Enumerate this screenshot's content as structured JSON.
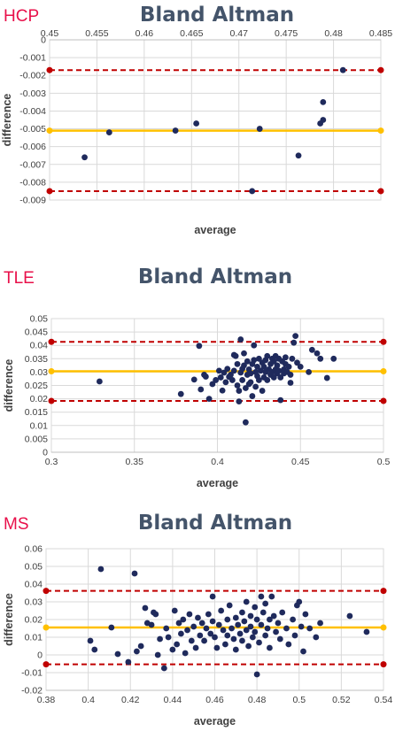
{
  "chart_data": [
    {
      "type": "scatter",
      "group_label": "HCP",
      "title": "Bland Altman",
      "xlabel": "average",
      "ylabel": "difference",
      "xlim": [
        0.45,
        0.485
      ],
      "ylim": [
        -0.009,
        0
      ],
      "x_ticks": [
        "0.45",
        "0.455",
        "0.46",
        "0.465",
        "0.47",
        "0.475",
        "0.48",
        "0.485"
      ],
      "y_ticks": [
        "0",
        "-0.001",
        "-0.002",
        "-0.003",
        "-0.004",
        "-0.005",
        "-0.006",
        "-0.007",
        "-0.008",
        "-0.009"
      ],
      "x_axis_position": "top",
      "mean": -0.0051,
      "upper_loa": -0.0017,
      "lower_loa": -0.0085,
      "points": [
        [
          0.4537,
          -0.0066
        ],
        [
          0.4563,
          -0.0052
        ],
        [
          0.4633,
          -0.0051
        ],
        [
          0.4655,
          -0.0047
        ],
        [
          0.4714,
          -0.0085
        ],
        [
          0.4722,
          -0.005
        ],
        [
          0.4763,
          -0.0065
        ],
        [
          0.4786,
          -0.0047
        ],
        [
          0.4789,
          -0.0045
        ],
        [
          0.4789,
          -0.0035
        ],
        [
          0.481,
          -0.0017
        ]
      ],
      "colors": {
        "points": "#1f2a5c",
        "mean": "#ffc000",
        "loa": "#c00000",
        "label": "#e8104a"
      }
    },
    {
      "type": "scatter",
      "group_label": "TLE",
      "title": "Bland Altman",
      "xlabel": "average",
      "ylabel": "difference",
      "xlim": [
        0.3,
        0.5
      ],
      "ylim": [
        0,
        0.05
      ],
      "x_ticks": [
        "0.3",
        "0.35",
        "0.4",
        "0.45",
        "0.5"
      ],
      "y_ticks": [
        "0",
        "0.005",
        "0.01",
        "0.015",
        "0.02",
        "0.025",
        "0.03",
        "0.035",
        "0.04",
        "0.045",
        "0.05"
      ],
      "x_axis_position": "bottom",
      "mean": 0.0303,
      "upper_loa": 0.0413,
      "lower_loa": 0.0192,
      "points": [
        [
          0.329,
          0.0265
        ],
        [
          0.378,
          0.0218
        ],
        [
          0.386,
          0.0272
        ],
        [
          0.389,
          0.0398
        ],
        [
          0.39,
          0.0235
        ],
        [
          0.392,
          0.029
        ],
        [
          0.393,
          0.0283
        ],
        [
          0.395,
          0.02
        ],
        [
          0.397,
          0.0255
        ],
        [
          0.399,
          0.027
        ],
        [
          0.401,
          0.0305
        ],
        [
          0.402,
          0.028
        ],
        [
          0.403,
          0.0231
        ],
        [
          0.404,
          0.0298
        ],
        [
          0.405,
          0.0262
        ],
        [
          0.406,
          0.0312
        ],
        [
          0.407,
          0.0282
        ],
        [
          0.408,
          0.029
        ],
        [
          0.409,
          0.027
        ],
        [
          0.41,
          0.0305
        ],
        [
          0.41,
          0.0364
        ],
        [
          0.411,
          0.036
        ],
        [
          0.412,
          0.025
        ],
        [
          0.412,
          0.033
        ],
        [
          0.413,
          0.023
        ],
        [
          0.413,
          0.019
        ],
        [
          0.414,
          0.0298
        ],
        [
          0.414,
          0.0422
        ],
        [
          0.415,
          0.027
        ],
        [
          0.415,
          0.0312
        ],
        [
          0.416,
          0.0325
        ],
        [
          0.416,
          0.037
        ],
        [
          0.417,
          0.0112
        ],
        [
          0.417,
          0.024
        ],
        [
          0.418,
          0.029
        ],
        [
          0.418,
          0.034
        ],
        [
          0.419,
          0.0255
        ],
        [
          0.419,
          0.031
        ],
        [
          0.42,
          0.0295
        ],
        [
          0.42,
          0.0262
        ],
        [
          0.421,
          0.033
        ],
        [
          0.421,
          0.021
        ],
        [
          0.422,
          0.0345
        ],
        [
          0.422,
          0.04
        ],
        [
          0.423,
          0.03
        ],
        [
          0.423,
          0.0245
        ],
        [
          0.424,
          0.0285
        ],
        [
          0.424,
          0.032
        ],
        [
          0.425,
          0.027
        ],
        [
          0.425,
          0.035
        ],
        [
          0.426,
          0.0305
        ],
        [
          0.427,
          0.023
        ],
        [
          0.427,
          0.0335
        ],
        [
          0.428,
          0.028
        ],
        [
          0.428,
          0.032
        ],
        [
          0.429,
          0.03
        ],
        [
          0.429,
          0.0345
        ],
        [
          0.43,
          0.027
        ],
        [
          0.43,
          0.036
        ],
        [
          0.431,
          0.031
        ],
        [
          0.432,
          0.029
        ],
        [
          0.432,
          0.033
        ],
        [
          0.433,
          0.035
        ],
        [
          0.433,
          0.03
        ],
        [
          0.434,
          0.028
        ],
        [
          0.434,
          0.034
        ],
        [
          0.435,
          0.031
        ],
        [
          0.435,
          0.036
        ],
        [
          0.436,
          0.0295
        ],
        [
          0.436,
          0.0325
        ],
        [
          0.437,
          0.035
        ],
        [
          0.437,
          0.0305
        ],
        [
          0.438,
          0.0195
        ],
        [
          0.438,
          0.028
        ],
        [
          0.439,
          0.034
        ],
        [
          0.44,
          0.031
        ],
        [
          0.44,
          0.0295
        ],
        [
          0.441,
          0.0355
        ],
        [
          0.441,
          0.033
        ],
        [
          0.442,
          0.03
        ],
        [
          0.443,
          0.032
        ],
        [
          0.444,
          0.029
        ],
        [
          0.444,
          0.026
        ],
        [
          0.445,
          0.035
        ],
        [
          0.446,
          0.041
        ],
        [
          0.447,
          0.0435
        ],
        [
          0.448,
          0.0335
        ],
        [
          0.45,
          0.032
        ],
        [
          0.455,
          0.03
        ],
        [
          0.457,
          0.0383
        ],
        [
          0.46,
          0.037
        ],
        [
          0.462,
          0.035
        ],
        [
          0.466,
          0.0278
        ],
        [
          0.47,
          0.035
        ]
      ],
      "colors": {
        "points": "#1f2a5c",
        "mean": "#ffc000",
        "loa": "#c00000",
        "label": "#e8104a"
      }
    },
    {
      "type": "scatter",
      "group_label": "MS",
      "title": "Bland Altman",
      "xlabel": "average",
      "ylabel": "difference",
      "xlim": [
        0.38,
        0.54
      ],
      "ylim": [
        -0.02,
        0.06
      ],
      "x_ticks": [
        "0.38",
        "0.4",
        "0.42",
        "0.44",
        "0.46",
        "0.48",
        "0.5",
        "0.52",
        "0.54"
      ],
      "y_ticks": [
        "-0.02",
        "-0.01",
        "0",
        "0.01",
        "0.02",
        "0.03",
        "0.04",
        "0.05",
        "0.06"
      ],
      "x_axis_position": "bottom",
      "mean": 0.0155,
      "upper_loa": 0.0362,
      "lower_loa": -0.0053,
      "points": [
        [
          0.401,
          0.008
        ],
        [
          0.403,
          0.003
        ],
        [
          0.406,
          0.0485
        ],
        [
          0.411,
          0.0155
        ],
        [
          0.414,
          0.0005
        ],
        [
          0.419,
          -0.004
        ],
        [
          0.422,
          0.046
        ],
        [
          0.423,
          0.002
        ],
        [
          0.425,
          0.005
        ],
        [
          0.427,
          0.0265
        ],
        [
          0.428,
          0.018
        ],
        [
          0.43,
          0.017
        ],
        [
          0.431,
          0.024
        ],
        [
          0.432,
          0.023
        ],
        [
          0.433,
          0.0
        ],
        [
          0.434,
          0.009
        ],
        [
          0.436,
          -0.0075
        ],
        [
          0.437,
          0.015
        ],
        [
          0.438,
          0.01
        ],
        [
          0.44,
          0.003
        ],
        [
          0.441,
          0.025
        ],
        [
          0.442,
          0.006
        ],
        [
          0.443,
          0.018
        ],
        [
          0.444,
          0.012
        ],
        [
          0.445,
          0.02
        ],
        [
          0.446,
          0.001
        ],
        [
          0.447,
          0.014
        ],
        [
          0.448,
          0.023
        ],
        [
          0.449,
          0.008
        ],
        [
          0.45,
          0.016
        ],
        [
          0.451,
          0.004
        ],
        [
          0.452,
          0.021
        ],
        [
          0.453,
          0.011
        ],
        [
          0.454,
          0.018
        ],
        [
          0.455,
          0.008
        ],
        [
          0.456,
          0.015
        ],
        [
          0.457,
          0.023
        ],
        [
          0.458,
          0.012
        ],
        [
          0.459,
          0.033
        ],
        [
          0.459,
          0.019
        ],
        [
          0.46,
          0.01
        ],
        [
          0.461,
          0.004
        ],
        [
          0.462,
          0.017
        ],
        [
          0.463,
          0.025
        ],
        [
          0.464,
          0.014
        ],
        [
          0.465,
          0.006
        ],
        [
          0.466,
          0.02
        ],
        [
          0.466,
          0.011
        ],
        [
          0.467,
          0.028
        ],
        [
          0.468,
          0.015
        ],
        [
          0.469,
          0.009
        ],
        [
          0.47,
          0.021
        ],
        [
          0.47,
          0.003
        ],
        [
          0.471,
          0.017
        ],
        [
          0.472,
          0.012
        ],
        [
          0.473,
          0.024
        ],
        [
          0.473,
          0.008
        ],
        [
          0.474,
          0.019
        ],
        [
          0.475,
          0.014
        ],
        [
          0.475,
          0.03
        ],
        [
          0.476,
          0.005
        ],
        [
          0.477,
          0.022
        ],
        [
          0.477,
          0.016
        ],
        [
          0.478,
          0.01
        ],
        [
          0.479,
          0.027
        ],
        [
          0.479,
          0.013
        ],
        [
          0.48,
          -0.011
        ],
        [
          0.48,
          0.02
        ],
        [
          0.481,
          0.007
        ],
        [
          0.482,
          0.017
        ],
        [
          0.482,
          0.033
        ],
        [
          0.483,
          0.024
        ],
        [
          0.484,
          0.011
        ],
        [
          0.484,
          0.029
        ],
        [
          0.485,
          0.015
        ],
        [
          0.486,
          0.02
        ],
        [
          0.486,
          0.004
        ],
        [
          0.487,
          0.033
        ],
        [
          0.488,
          0.022
        ],
        [
          0.489,
          0.013
        ],
        [
          0.49,
          0.018
        ],
        [
          0.491,
          0.009
        ],
        [
          0.492,
          0.024
        ],
        [
          0.494,
          0.015
        ],
        [
          0.495,
          0.006
        ],
        [
          0.497,
          0.02
        ],
        [
          0.498,
          0.011
        ],
        [
          0.499,
          0.028
        ],
        [
          0.5,
          0.03
        ],
        [
          0.501,
          0.016
        ],
        [
          0.502,
          0.002
        ],
        [
          0.503,
          0.023
        ],
        [
          0.505,
          0.015
        ],
        [
          0.508,
          0.01
        ],
        [
          0.51,
          0.018
        ],
        [
          0.524,
          0.022
        ],
        [
          0.532,
          0.013
        ]
      ],
      "colors": {
        "points": "#1f2a5c",
        "mean": "#ffc000",
        "loa": "#c00000",
        "label": "#e8104a"
      }
    }
  ]
}
